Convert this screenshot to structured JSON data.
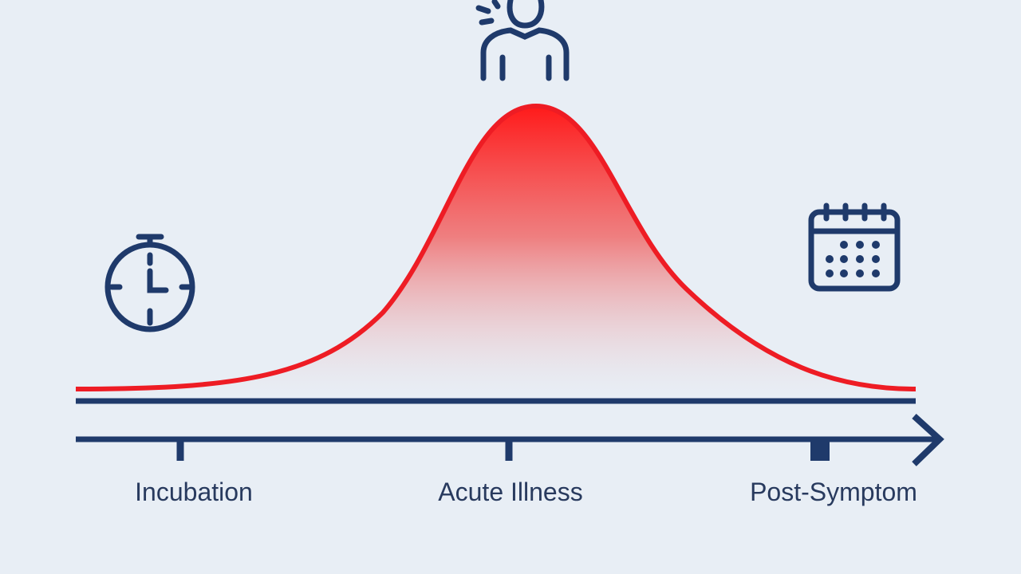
{
  "stages": [
    {
      "label": "Incubation"
    },
    {
      "label": "Acute Illness"
    },
    {
      "label": "Post-Symptom"
    }
  ]
}
